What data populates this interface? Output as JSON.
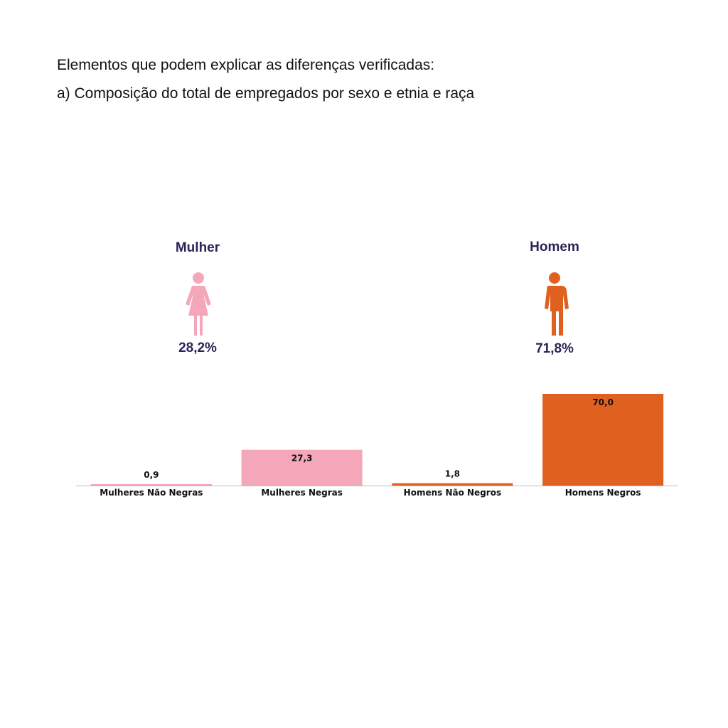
{
  "headings": {
    "line1": "Elementos que podem explicar as diferenças verificadas:",
    "line2": "a) Composição do total de empregados por sexo e etnia e raça"
  },
  "genders": {
    "female": {
      "label": "Mulher",
      "percent": "28,2%",
      "icon": "woman-icon",
      "color": "#f4a7b9"
    },
    "male": {
      "label": "Homem",
      "percent": "71,8%",
      "icon": "man-icon",
      "color": "#e06020"
    }
  },
  "chart_data": {
    "type": "bar",
    "categories": [
      "Mulheres Não Negras",
      "Mulheres Negras",
      "Homens Não Negros",
      "Homens Negros"
    ],
    "values": [
      0.9,
      27.3,
      1.8,
      70.0
    ],
    "value_labels": [
      "0,9",
      "27,3",
      "1,8",
      "70,0"
    ],
    "colors": [
      "#f4a7b9",
      "#f4a7b9",
      "#e06020",
      "#e06020"
    ],
    "title": "",
    "xlabel": "",
    "ylabel": "",
    "ylim": [
      0,
      70
    ],
    "grid": false
  }
}
